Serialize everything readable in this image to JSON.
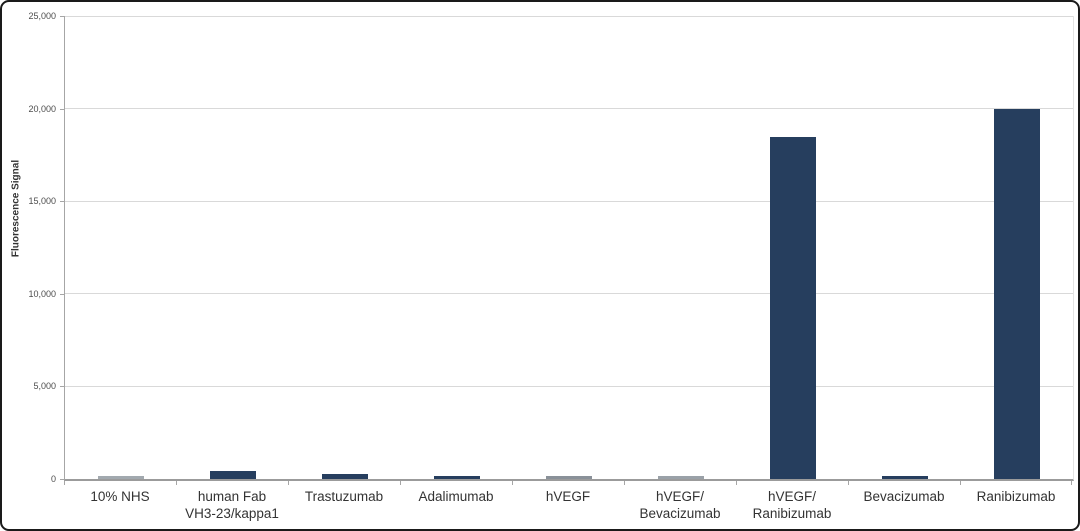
{
  "chart_data": {
    "type": "bar",
    "title": "",
    "xlabel": "",
    "ylabel": "Fluorescence Signal",
    "categories": [
      "10% NHS",
      "human Fab\nVH3-23/kappa1",
      "Trastuzumab",
      "Adalimumab",
      "hVEGF",
      "hVEGF/\nBevacizumab",
      "hVEGF/\nRanibizumab",
      "Bevacizumab",
      "Ranibizumab"
    ],
    "values": [
      150,
      430,
      260,
      180,
      160,
      140,
      18450,
      160,
      20000
    ],
    "bar_colors": [
      "#a2a9af",
      "#263e5e",
      "#263e5e",
      "#263e5e",
      "#8a9199",
      "#9aa1a8",
      "#263e5e",
      "#263e5e",
      "#263e5e"
    ],
    "ylim": [
      0,
      25000
    ],
    "yticks": [
      0,
      5000,
      10000,
      15000,
      20000,
      25000
    ],
    "ytick_labels": [
      "0",
      "5,000",
      "10,000",
      "15,000",
      "20,000",
      "25,000"
    ],
    "grid": true,
    "legend": "none",
    "accent_color": "#263e5e",
    "gray_color": "#9aa1a8",
    "gridline_color": "#d9d9d9"
  }
}
